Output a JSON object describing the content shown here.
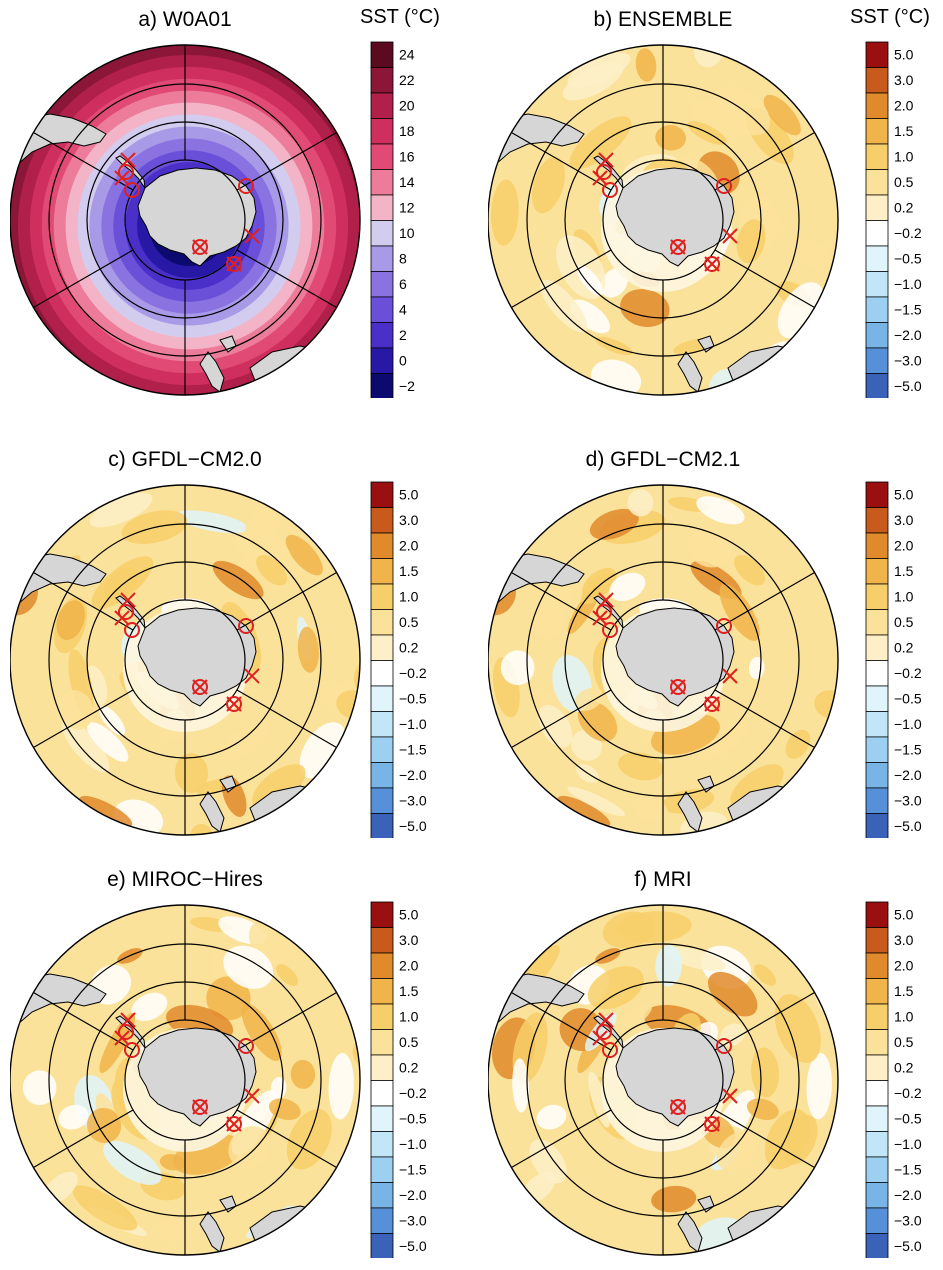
{
  "colorbars": {
    "absolute": {
      "title": "SST (°C)",
      "labels": [
        "24",
        "22",
        "20",
        "18",
        "16",
        "14",
        "12",
        "10",
        "8",
        "6",
        "4",
        "2",
        "0",
        "−2"
      ],
      "colors": [
        "#5c0a1f",
        "#8c1638",
        "#b0204a",
        "#cf2f5e",
        "#e04a75",
        "#ec7c9a",
        "#f3b4c8",
        "#d2ccef",
        "#a89ae6",
        "#8a72e0",
        "#6a4fd8",
        "#4a30c8",
        "#2818a6",
        "#0c0a6e"
      ]
    },
    "anomaly": {
      "title": "SST (°C)",
      "labels": [
        "5.0",
        "3.0",
        "2.0",
        "1.5",
        "1.0",
        "0.5",
        "0.2",
        "−0.2",
        "−0.5",
        "−1.0",
        "−1.5",
        "−2.0",
        "−3.0",
        "−5.0"
      ],
      "colors": [
        "#9a0f10",
        "#c85a1c",
        "#e08a2c",
        "#f0b44a",
        "#f7cf6a",
        "#fbe29a",
        "#fdf0c8",
        "#ffffff",
        "#dff4fb",
        "#c0e6f7",
        "#9dd0f0",
        "#78b4e6",
        "#5590d8",
        "#3a62b8"
      ]
    }
  },
  "panels": [
    {
      "id": "a",
      "title": "a) W0A01",
      "scale": "absolute",
      "show_cb_title": true
    },
    {
      "id": "b",
      "title": "b) ENSEMBLE",
      "scale": "anomaly",
      "show_cb_title": true
    },
    {
      "id": "c",
      "title": "c) GFDL−CM2.0",
      "scale": "anomaly",
      "show_cb_title": false
    },
    {
      "id": "d",
      "title": "d) GFDL−CM2.1",
      "scale": "anomaly",
      "show_cb_title": false
    },
    {
      "id": "e",
      "title": "e) MIROC−Hires",
      "scale": "anomaly",
      "show_cb_title": false
    },
    {
      "id": "f",
      "title": "f) MRI",
      "scale": "anomaly",
      "show_cb_title": false
    }
  ],
  "map": {
    "projection": "south polar stereographic",
    "ocean_color_absolute": "#e35f83",
    "land_color": "#d6d6d6",
    "marker_color": "#e02020",
    "markers": [
      "cross",
      "cross",
      "circle",
      "circle",
      "circle",
      "cross",
      "circled-cross",
      "circled-cross"
    ]
  }
}
